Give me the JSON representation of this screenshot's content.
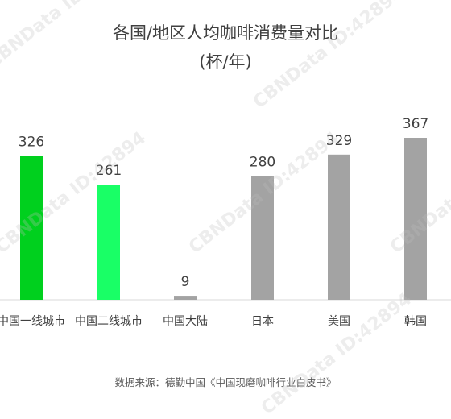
{
  "title_line1": "各国/地区人均咖啡消费量对比",
  "title_line2": "(杯/年)",
  "source": "数据来源：德勤中国《中国现磨咖啡行业白皮书》",
  "watermark": "CBNData ID:42894",
  "colors": {
    "tier1": "#00d01e",
    "tier2": "#19ff66",
    "other": "#a3a3a3",
    "axis": "#d9d9d9",
    "text": "#404040"
  },
  "chart_data": {
    "type": "bar",
    "title": "各国/地区人均咖啡消费量对比 (杯/年)",
    "categories": [
      "中国一线城市",
      "中国二线城市",
      "中国大陆",
      "日本",
      "美国",
      "韩国"
    ],
    "values": [
      326,
      261,
      9,
      280,
      329,
      367
    ],
    "bar_colors": [
      "#00d01e",
      "#19ff66",
      "#a3a3a3",
      "#a3a3a3",
      "#a3a3a3",
      "#a3a3a3"
    ],
    "ylim": [
      0,
      367
    ],
    "grid": false,
    "legend": "none",
    "data_labels": true
  }
}
